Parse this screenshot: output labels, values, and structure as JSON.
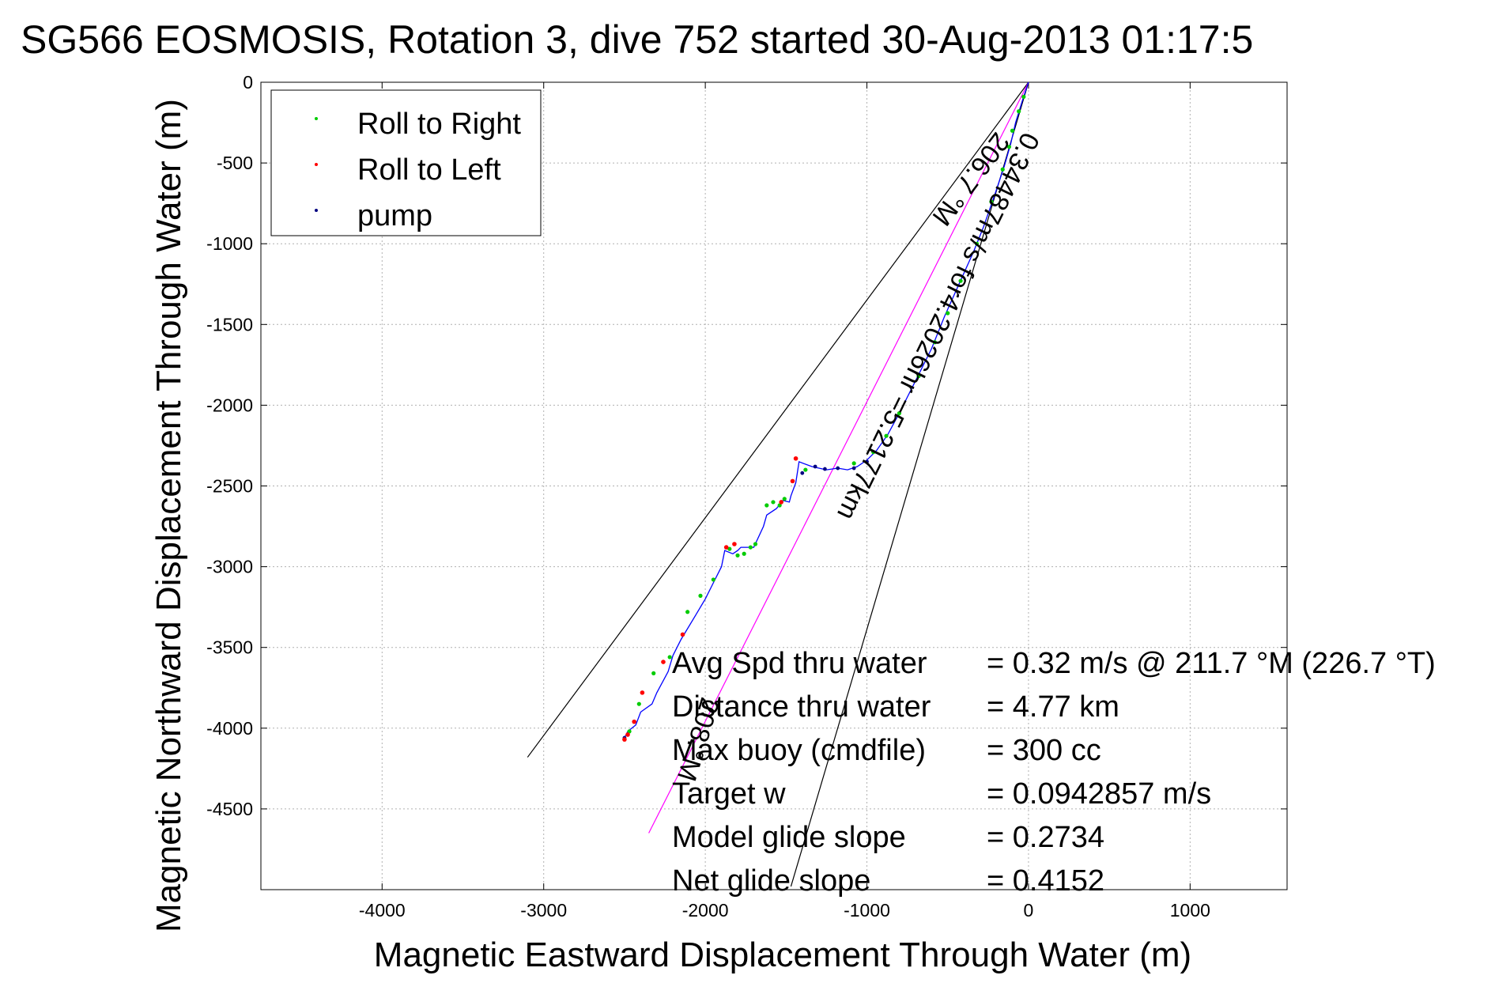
{
  "chart_data": {
    "type": "scatter",
    "title": "SG566 EOSMOSIS, Rotation 3, dive 752 started 30-Aug-2013 01:17:5",
    "xlabel": "Magnetic Eastward Displacement Through Water (m)",
    "ylabel": "Magnetic Northward Displacement Through Water (m)",
    "xlim": [
      -4750,
      1600
    ],
    "ylim": [
      -5000,
      0
    ],
    "xticks": [
      -4000,
      -3000,
      -2000,
      -1000,
      0,
      1000
    ],
    "xtick_labels": [
      "-4000",
      "-3000",
      "-2000",
      "-1000",
      "0",
      "1000"
    ],
    "yticks": [
      0,
      -500,
      -1000,
      -1500,
      -2000,
      -2500,
      -3000,
      -3500,
      -4000,
      -4500
    ],
    "ytick_labels": [
      "0",
      "-500",
      "-1000",
      "-1500",
      "-2000",
      "-2500",
      "-3000",
      "-3500",
      "-4000",
      "-4500"
    ],
    "grid": true,
    "legend": {
      "position": "top-left",
      "entries": [
        {
          "label": "Roll to Right",
          "color": "#00cc00"
        },
        {
          "label": "Roll to Left",
          "color": "#ff0000"
        },
        {
          "label": "pump",
          "color": "#000080"
        }
      ]
    },
    "track": {
      "color": "#0000ff",
      "x": [
        0,
        -40,
        -80,
        -110,
        -150,
        -210,
        -280,
        -340,
        -430,
        -520,
        -600,
        -700,
        -800,
        -870,
        -940,
        -1000,
        -1060,
        -1120,
        -1180,
        -1250,
        -1340,
        -1420,
        -1440,
        -1470,
        -1480,
        -1520,
        -1560,
        -1620,
        -1640,
        -1700,
        -1780,
        -1800,
        -1830,
        -1880,
        -1900,
        -1950,
        -2000,
        -2060,
        -2150,
        -2200,
        -2230,
        -2300,
        -2330,
        -2400,
        -2430,
        -2480,
        -2500
      ],
      "y": [
        0,
        -120,
        -250,
        -380,
        -520,
        -700,
        -900,
        -1050,
        -1250,
        -1450,
        -1650,
        -1850,
        -2050,
        -2180,
        -2280,
        -2340,
        -2380,
        -2400,
        -2390,
        -2400,
        -2380,
        -2350,
        -2480,
        -2560,
        -2600,
        -2590,
        -2640,
        -2680,
        -2750,
        -2880,
        -2880,
        -2900,
        -2920,
        -2900,
        -3000,
        -3100,
        -3200,
        -3300,
        -3450,
        -3550,
        -3650,
        -3780,
        -3850,
        -3900,
        -3980,
        -4020,
        -4060
      ]
    },
    "roll_right": {
      "color": "#00cc00",
      "x": [
        -30,
        -60,
        -100,
        -120,
        -160,
        -230,
        -320,
        -420,
        -500,
        -580,
        -680,
        -800,
        -880,
        -960,
        -1080,
        -1380,
        -1510,
        -1540,
        -1580,
        -1620,
        -1690,
        -1720,
        -1760,
        -1800,
        -1850,
        -1950,
        -2030,
        -2110,
        -2220,
        -2320,
        -2410,
        -2470
      ],
      "y": [
        -90,
        -180,
        -300,
        -400,
        -540,
        -740,
        -1000,
        -1230,
        -1430,
        -1610,
        -1820,
        -2050,
        -2190,
        -2290,
        -2360,
        -2400,
        -2580,
        -2620,
        -2600,
        -2620,
        -2860,
        -2880,
        -2920,
        -2930,
        -2890,
        -3080,
        -3180,
        -3280,
        -3560,
        -3660,
        -3850,
        -4020
      ]
    },
    "roll_left": {
      "color": "#ff0000",
      "x": [
        -1440,
        -1460,
        -1530,
        -1820,
        -1870,
        -2140,
        -2260,
        -2390,
        -2440,
        -2480,
        -2500
      ],
      "y": [
        -2330,
        -2470,
        -2600,
        -2860,
        -2880,
        -3420,
        -3590,
        -3780,
        -3960,
        -4040,
        -4070
      ],
      "pts": []
    },
    "pump": {
      "color": "#000080",
      "x": [
        -1000,
        -1080,
        -1180,
        -1260,
        -1320,
        -1400,
        -2500
      ],
      "y": [
        -2350,
        -2390,
        -2390,
        -2395,
        -2380,
        -2420,
        -4060
      ]
    },
    "reference_lines": [
      {
        "color": "#000000",
        "x": [
          0,
          -3100
        ],
        "y": [
          0,
          -4180
        ]
      },
      {
        "color": "#000000",
        "x": [
          0,
          -1470
        ],
        "y": [
          0,
          -4980
        ]
      },
      {
        "color": "#ff00ff",
        "x": [
          0,
          -2350
        ],
        "y": [
          0,
          -4650
        ]
      }
    ],
    "annotations": [
      {
        "text": "206.7 °M",
        "x": -200,
        "y": -300,
        "angle": 127
      },
      {
        "text": "0.34487m/s for4.2026hr =5.2177km",
        "x": -30,
        "y": -300,
        "angle": 116
      },
      {
        "text": "208.°M",
        "x": -2020,
        "y": -3800,
        "angle": 107
      }
    ],
    "stats": [
      {
        "label": "Avg Spd thru water",
        "value": "=  0.32 m/s @ 211.7 °M (226.7 °T)"
      },
      {
        "label": "Distance thru water",
        "value": "=  4.77 km"
      },
      {
        "label": "Max buoy (cmdfile)",
        "value": "= 300 cc"
      },
      {
        "label": "Target w",
        "value": "= 0.0942857 m/s"
      },
      {
        "label": "Model glide slope",
        "value": "= 0.2734"
      },
      {
        "label": "Net glide slope",
        "value": "= 0.4152"
      }
    ]
  }
}
